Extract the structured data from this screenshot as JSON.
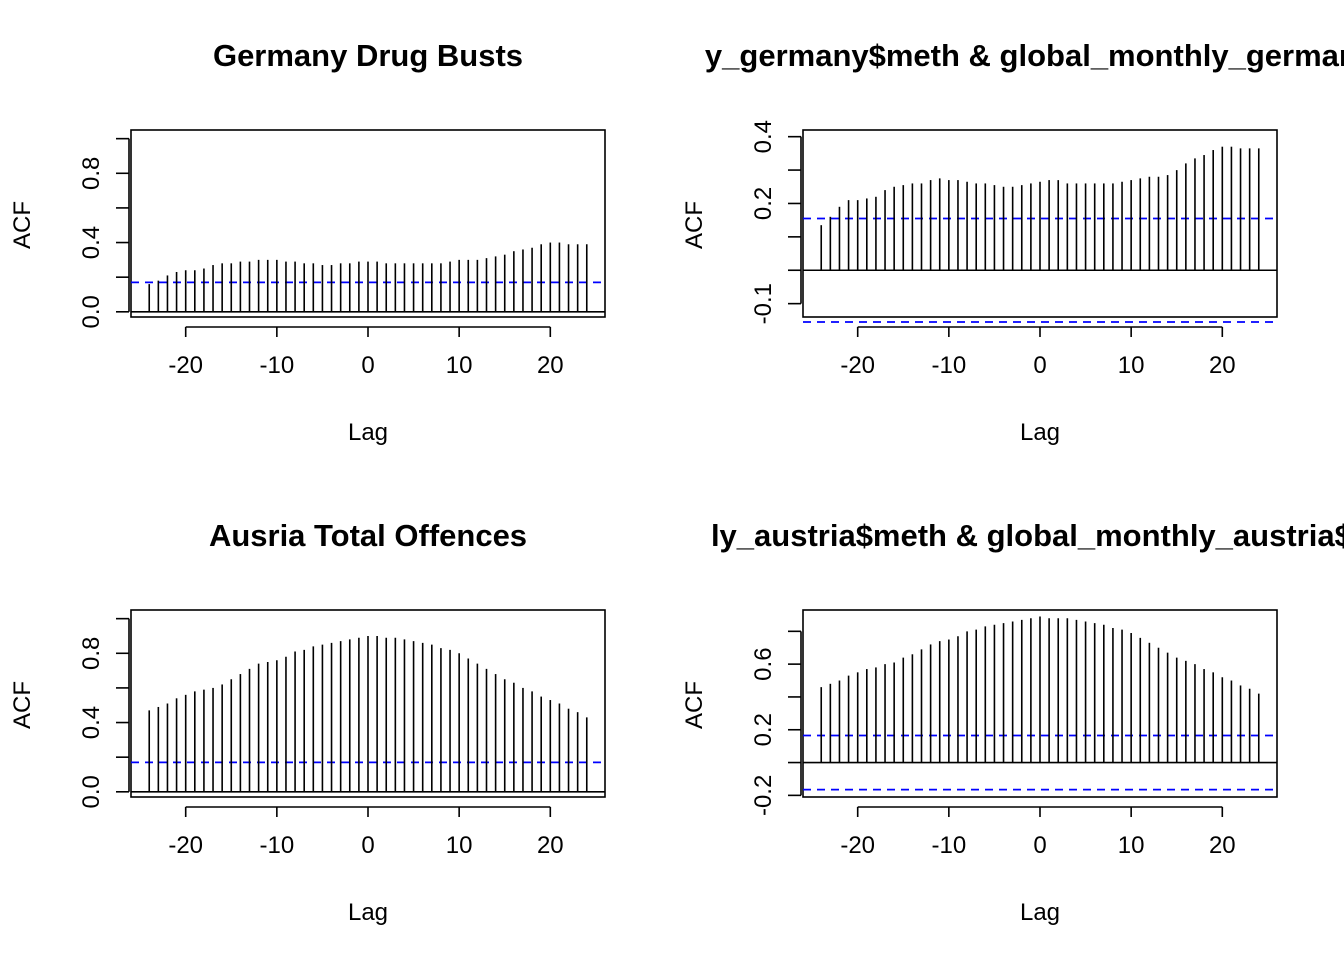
{
  "figure": {
    "background": "#ffffff",
    "bar_color": "#000000",
    "ci_color": "#0000ff"
  },
  "chart_data": [
    {
      "type": "bar",
      "subtype": "acf",
      "title": "Germany Drug Busts",
      "xlabel": "Lag",
      "ylabel": "ACF",
      "xlim": [
        -26,
        26
      ],
      "ylim": [
        -0.03,
        1.05
      ],
      "xticks": [
        -20,
        -10,
        0,
        10,
        20
      ],
      "xtick_labels": [
        "-20",
        "-10",
        "0",
        "10",
        "20"
      ],
      "yticks": [
        0.0,
        0.2,
        0.4,
        0.6,
        0.8,
        1.0
      ],
      "ytick_labels": [
        "0.0",
        "",
        "0.4",
        "",
        "0.8",
        ""
      ],
      "ci": [
        0.17
      ],
      "x": [
        -24,
        -23,
        -22,
        -21,
        -20,
        -19,
        -18,
        -17,
        -16,
        -15,
        -14,
        -13,
        -12,
        -11,
        -10,
        -9,
        -8,
        -7,
        -6,
        -5,
        -4,
        -3,
        -2,
        -1,
        0,
        1,
        2,
        3,
        4,
        5,
        6,
        7,
        8,
        9,
        10,
        11,
        12,
        13,
        14,
        15,
        16,
        17,
        18,
        19,
        20,
        21,
        22,
        23,
        24
      ],
      "values": [
        0.16,
        0.18,
        0.21,
        0.23,
        0.24,
        0.24,
        0.25,
        0.27,
        0.28,
        0.28,
        0.29,
        0.29,
        0.3,
        0.3,
        0.3,
        0.29,
        0.29,
        0.28,
        0.28,
        0.27,
        0.27,
        0.28,
        0.28,
        0.29,
        0.29,
        0.29,
        0.28,
        0.28,
        0.28,
        0.28,
        0.28,
        0.28,
        0.28,
        0.29,
        0.3,
        0.3,
        0.3,
        0.31,
        0.32,
        0.33,
        0.35,
        0.36,
        0.37,
        0.39,
        0.4,
        0.4,
        0.39,
        0.39,
        0.39
      ]
    },
    {
      "type": "bar",
      "subtype": "acf",
      "title": "y_germany$meth & global_monthly_germany",
      "xlabel": "Lag",
      "ylabel": "ACF",
      "xlim": [
        -26,
        26
      ],
      "ylim": [
        -0.14,
        0.42
      ],
      "xticks": [
        -20,
        -10,
        0,
        10,
        20
      ],
      "xtick_labels": [
        "-20",
        "-10",
        "0",
        "10",
        "20"
      ],
      "yticks": [
        -0.1,
        0.0,
        0.1,
        0.2,
        0.3,
        0.4
      ],
      "ytick_labels": [
        "-0.1",
        "",
        "",
        "0.2",
        "",
        "0.4"
      ],
      "ci": [
        0.155,
        -0.155
      ],
      "x": [
        -24,
        -23,
        -22,
        -21,
        -20,
        -19,
        -18,
        -17,
        -16,
        -15,
        -14,
        -13,
        -12,
        -11,
        -10,
        -9,
        -8,
        -7,
        -6,
        -5,
        -4,
        -3,
        -2,
        -1,
        0,
        1,
        2,
        3,
        4,
        5,
        6,
        7,
        8,
        9,
        10,
        11,
        12,
        13,
        14,
        15,
        16,
        17,
        18,
        19,
        20,
        21,
        22,
        23,
        24
      ],
      "values": [
        0.135,
        0.16,
        0.19,
        0.21,
        0.21,
        0.215,
        0.22,
        0.24,
        0.25,
        0.255,
        0.26,
        0.26,
        0.27,
        0.275,
        0.27,
        0.27,
        0.265,
        0.26,
        0.26,
        0.255,
        0.25,
        0.25,
        0.255,
        0.26,
        0.265,
        0.27,
        0.27,
        0.26,
        0.26,
        0.26,
        0.26,
        0.26,
        0.26,
        0.265,
        0.27,
        0.275,
        0.28,
        0.28,
        0.285,
        0.3,
        0.32,
        0.335,
        0.345,
        0.36,
        0.37,
        0.37,
        0.365,
        0.365,
        0.365
      ]
    },
    {
      "type": "bar",
      "subtype": "acf",
      "title": "Ausria Total Offences",
      "xlabel": "Lag",
      "ylabel": "ACF",
      "xlim": [
        -26,
        26
      ],
      "ylim": [
        -0.03,
        1.05
      ],
      "xticks": [
        -20,
        -10,
        0,
        10,
        20
      ],
      "xtick_labels": [
        "-20",
        "-10",
        "0",
        "10",
        "20"
      ],
      "yticks": [
        0.0,
        0.2,
        0.4,
        0.6,
        0.8,
        1.0
      ],
      "ytick_labels": [
        "0.0",
        "",
        "0.4",
        "",
        "0.8",
        ""
      ],
      "ci": [
        0.17
      ],
      "x": [
        -24,
        -23,
        -22,
        -21,
        -20,
        -19,
        -18,
        -17,
        -16,
        -15,
        -14,
        -13,
        -12,
        -11,
        -10,
        -9,
        -8,
        -7,
        -6,
        -5,
        -4,
        -3,
        -2,
        -1,
        0,
        1,
        2,
        3,
        4,
        5,
        6,
        7,
        8,
        9,
        10,
        11,
        12,
        13,
        14,
        15,
        16,
        17,
        18,
        19,
        20,
        21,
        22,
        23,
        24
      ],
      "values": [
        0.47,
        0.49,
        0.51,
        0.54,
        0.56,
        0.58,
        0.59,
        0.6,
        0.62,
        0.65,
        0.68,
        0.71,
        0.74,
        0.75,
        0.76,
        0.78,
        0.81,
        0.82,
        0.84,
        0.85,
        0.86,
        0.87,
        0.88,
        0.89,
        0.9,
        0.9,
        0.89,
        0.89,
        0.88,
        0.87,
        0.86,
        0.85,
        0.83,
        0.82,
        0.8,
        0.77,
        0.74,
        0.71,
        0.68,
        0.65,
        0.63,
        0.6,
        0.58,
        0.55,
        0.53,
        0.51,
        0.48,
        0.46,
        0.43
      ]
    },
    {
      "type": "bar",
      "subtype": "acf",
      "title": "ly_austria$meth & global_monthly_austria$c",
      "xlabel": "Lag",
      "ylabel": "ACF",
      "xlim": [
        -26,
        26
      ],
      "ylim": [
        -0.21,
        0.93
      ],
      "xticks": [
        -20,
        -10,
        0,
        10,
        20
      ],
      "xtick_labels": [
        "-20",
        "-10",
        "0",
        "10",
        "20"
      ],
      "yticks": [
        -0.2,
        0.0,
        0.2,
        0.4,
        0.6,
        0.8
      ],
      "ytick_labels": [
        "-0.2",
        "",
        "0.2",
        "",
        "0.6",
        ""
      ],
      "ci": [
        0.165,
        -0.165
      ],
      "x": [
        -24,
        -23,
        -22,
        -21,
        -20,
        -19,
        -18,
        -17,
        -16,
        -15,
        -14,
        -13,
        -12,
        -11,
        -10,
        -9,
        -8,
        -7,
        -6,
        -5,
        -4,
        -3,
        -2,
        -1,
        0,
        1,
        2,
        3,
        4,
        5,
        6,
        7,
        8,
        9,
        10,
        11,
        12,
        13,
        14,
        15,
        16,
        17,
        18,
        19,
        20,
        21,
        22,
        23,
        24
      ],
      "values": [
        0.46,
        0.48,
        0.5,
        0.53,
        0.55,
        0.57,
        0.58,
        0.6,
        0.61,
        0.64,
        0.66,
        0.69,
        0.72,
        0.74,
        0.75,
        0.77,
        0.8,
        0.81,
        0.83,
        0.84,
        0.85,
        0.86,
        0.87,
        0.88,
        0.89,
        0.88,
        0.88,
        0.88,
        0.87,
        0.86,
        0.85,
        0.84,
        0.82,
        0.81,
        0.79,
        0.76,
        0.73,
        0.7,
        0.67,
        0.64,
        0.62,
        0.6,
        0.57,
        0.55,
        0.52,
        0.5,
        0.47,
        0.45,
        0.42
      ]
    }
  ]
}
